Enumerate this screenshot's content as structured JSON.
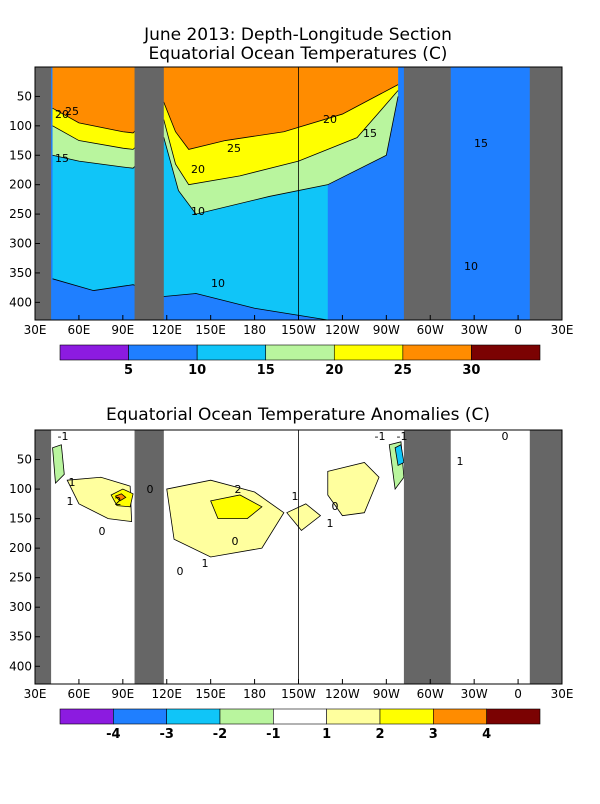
{
  "figure": {
    "title_line1": "June 2013: Depth-Longitude Section",
    "title_line2": "Equatorial Ocean Temperatures (C)",
    "title_bottom": "Equatorial Ocean Temperature Anomalies (C)"
  },
  "chart_data": [
    {
      "type": "heatmap",
      "title": "June 2013: Depth-Longitude Section Equatorial Ocean Temperatures (C)",
      "x_ticks": [
        "30E",
        "60E",
        "90E",
        "120E",
        "150E",
        "180",
        "150W",
        "120W",
        "90W",
        "60W",
        "30W",
        "0",
        "30E"
      ],
      "y_ticks": [
        "50",
        "100",
        "150",
        "200",
        "250",
        "300",
        "350",
        "400"
      ],
      "xlim_deg_east": [
        30,
        390
      ],
      "ylim_depth_m": [
        0,
        430
      ],
      "land_masks_deg_east": [
        [
          30,
          41
        ],
        [
          98,
          118
        ],
        [
          282,
          314
        ],
        [
          368,
          390
        ]
      ],
      "colorbar": {
        "tick_labels": [
          "5",
          "10",
          "15",
          "20",
          "25",
          "30"
        ],
        "colors": [
          "#8c1be0",
          "#1f7fff",
          "#10c5f8",
          "#b9f59e",
          "#ffff00",
          "#ff8c00",
          "#7b0202"
        ]
      },
      "contour_labels": [
        "25",
        "20",
        "15",
        "20",
        "25",
        "20",
        "15",
        "15",
        "10",
        "10",
        "10"
      ],
      "isotherms": [
        {
          "level": 25,
          "points": [
            [
              42,
              70
            ],
            [
              60,
              95
            ],
            [
              90,
              110
            ],
            [
              97,
              112
            ],
            [
              118,
              60
            ],
            [
              126,
              110
            ],
            [
              135,
              140
            ],
            [
              160,
              125
            ],
            [
              200,
              110
            ],
            [
              240,
              80
            ],
            [
              278,
              30
            ]
          ]
        },
        {
          "level": 20,
          "points": [
            [
              42,
              100
            ],
            [
              60,
              125
            ],
            [
              90,
              138
            ],
            [
              97,
              140
            ],
            [
              118,
              90
            ],
            [
              126,
              165
            ],
            [
              135,
              200
            ],
            [
              170,
              185
            ],
            [
              210,
              160
            ],
            [
              250,
              120
            ],
            [
              278,
              40
            ]
          ]
        },
        {
          "level": 15,
          "points": [
            [
              42,
              150
            ],
            [
              60,
              160
            ],
            [
              90,
              170
            ],
            [
              97,
              172
            ],
            [
              118,
              120
            ],
            [
              128,
              210
            ],
            [
              140,
              250
            ],
            [
              190,
              220
            ],
            [
              230,
              200
            ],
            [
              270,
              150
            ],
            [
              278,
              50
            ]
          ]
        },
        {
          "level": 10,
          "points": [
            [
              42,
              360
            ],
            [
              70,
              380
            ],
            [
              97,
              370
            ],
            [
              118,
              390
            ],
            [
              140,
              385
            ],
            [
              180,
              410
            ],
            [
              230,
              430
            ]
          ]
        }
      ]
    },
    {
      "type": "heatmap",
      "title": "Equatorial Ocean Temperature Anomalies (C)",
      "x_ticks": [
        "30E",
        "60E",
        "90E",
        "120E",
        "150E",
        "180",
        "150W",
        "120W",
        "90W",
        "60W",
        "30W",
        "0",
        "30E"
      ],
      "y_ticks": [
        "50",
        "100",
        "150",
        "200",
        "250",
        "300",
        "350",
        "400"
      ],
      "xlim_deg_east": [
        30,
        390
      ],
      "ylim_depth_m": [
        0,
        430
      ],
      "land_masks_deg_east": [
        [
          30,
          41
        ],
        [
          98,
          118
        ],
        [
          282,
          314
        ],
        [
          368,
          390
        ]
      ],
      "colorbar": {
        "tick_labels": [
          "-4",
          "-3",
          "-2",
          "-1",
          "1",
          "2",
          "3",
          "4"
        ],
        "colors": [
          "#8c1be0",
          "#1f7fff",
          "#10c5f8",
          "#b9f59e",
          "#ffffff",
          "#ffff9e",
          "#ffff00",
          "#ff8c00",
          "#7b0202"
        ]
      },
      "contour_labels": [
        "1",
        "2",
        "0",
        "-1",
        "2",
        "1",
        "1",
        "0",
        "-1",
        "0",
        "0",
        "1",
        "1",
        "0",
        "-1",
        "1",
        "0"
      ],
      "anomaly_regions": [
        {
          "value": 1,
          "points": [
            [
              52,
              85
            ],
            [
              75,
              80
            ],
            [
              95,
              95
            ],
            [
              96,
              155
            ],
            [
              80,
              150
            ],
            [
              60,
              125
            ]
          ]
        },
        {
          "value": 2,
          "points": [
            [
              82,
              110
            ],
            [
              90,
              100
            ],
            [
              97,
              108
            ],
            [
              95,
              130
            ],
            [
              86,
              128
            ]
          ]
        },
        {
          "value": 3,
          "points": [
            [
              85,
              112
            ],
            [
              89,
              108
            ],
            [
              92,
              114
            ],
            [
              88,
              120
            ]
          ]
        },
        {
          "value": 1,
          "points": [
            [
              120,
              100
            ],
            [
              150,
              85
            ],
            [
              180,
              105
            ],
            [
              200,
              140
            ],
            [
              185,
              200
            ],
            [
              150,
              215
            ],
            [
              125,
              185
            ]
          ]
        },
        {
          "value": 2,
          "points": [
            [
              150,
              120
            ],
            [
              170,
              110
            ],
            [
              185,
              130
            ],
            [
              175,
              150
            ],
            [
              155,
              150
            ]
          ]
        },
        {
          "value": 1,
          "points": [
            [
              202,
              140
            ],
            [
              215,
              125
            ],
            [
              225,
              145
            ],
            [
              212,
              170
            ]
          ]
        },
        {
          "value": 1,
          "points": [
            [
              230,
              70
            ],
            [
              255,
              55
            ],
            [
              265,
              80
            ],
            [
              255,
              140
            ],
            [
              240,
              145
            ],
            [
              230,
              110
            ]
          ]
        },
        {
          "value": -1,
          "points": [
            [
              272,
              25
            ],
            [
              280,
              20
            ],
            [
              282,
              80
            ],
            [
              276,
              100
            ]
          ]
        },
        {
          "value": -2,
          "points": [
            [
              276,
              30
            ],
            [
              280,
              25
            ],
            [
              282,
              55
            ],
            [
              278,
              60
            ]
          ]
        },
        {
          "value": -1,
          "points": [
            [
              42,
              30
            ],
            [
              48,
              25
            ],
            [
              50,
              75
            ],
            [
              44,
              90
            ]
          ]
        }
      ]
    }
  ]
}
